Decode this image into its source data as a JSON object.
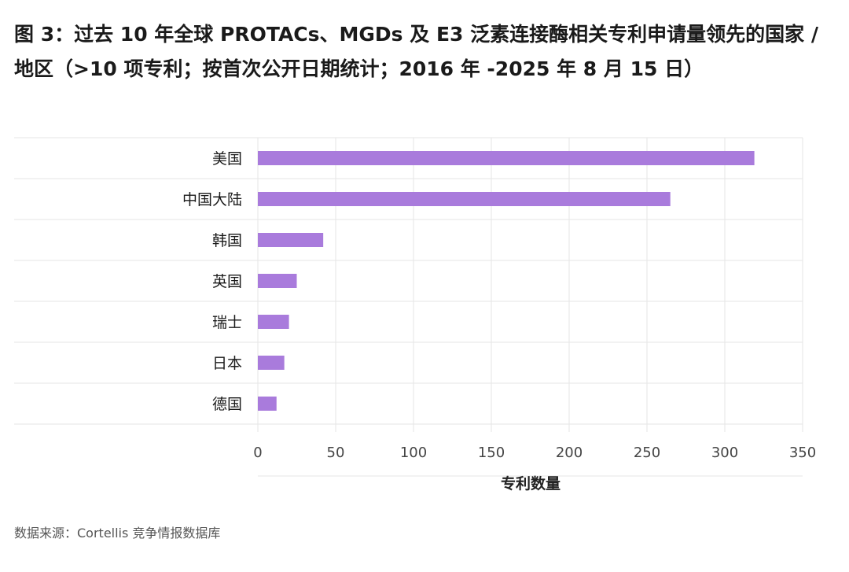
{
  "title": "图 3：过去 10 年全球 PROTACs、MGDs 及 E3 泛素连接酶相关专利申请量领先的国家 / 地区（>10 项专利；按首次公开日期统计；2016 年 -2025 年 8 月 15 日）",
  "source": "数据来源：Cortellis 竞争情报数据库",
  "colors": {
    "bar": "#a97bdc",
    "grid": "#e6e6e6",
    "axis_text": "#444444"
  },
  "chart_data": {
    "type": "bar",
    "orientation": "horizontal",
    "title": "图 3：过去 10 年全球 PROTACs、MGDs 及 E3 泛素连接酶相关专利申请量领先的国家 / 地区（>10 项专利；按首次公开日期统计；2016 年 -2025 年 8 月 15 日）",
    "categories": [
      "美国",
      "中国大陆",
      "韩国",
      "英国",
      "瑞士",
      "日本",
      "德国"
    ],
    "values": [
      319,
      265,
      42,
      25,
      20,
      17,
      12
    ],
    "xlabel": "专利数量",
    "ylabel": "",
    "xlim": [
      0,
      350
    ],
    "xticks": [
      0,
      50,
      100,
      150,
      200,
      250,
      300,
      350
    ],
    "grid": true,
    "legend": "none"
  }
}
